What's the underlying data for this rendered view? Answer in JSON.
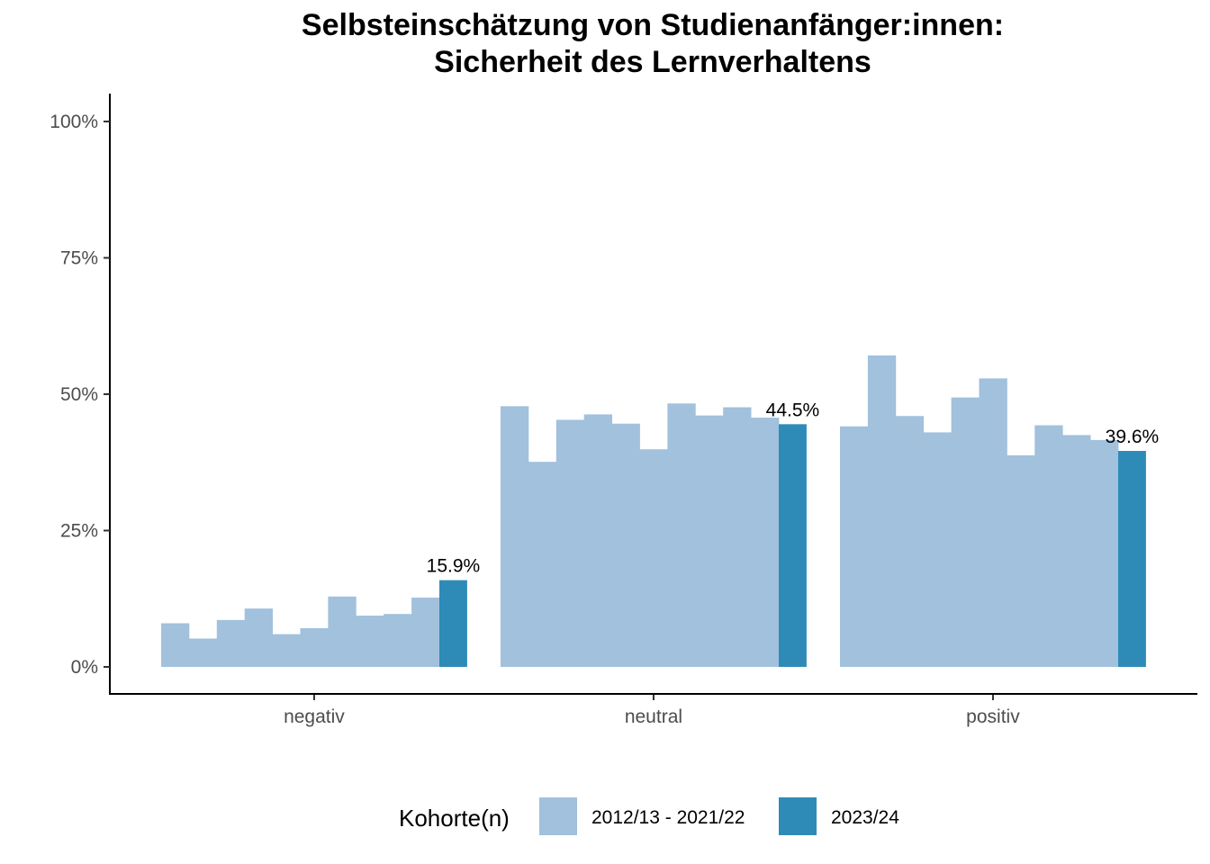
{
  "chart_data": {
    "type": "bar",
    "title_line1": "Selbsteinschätzung von Studienanfänger:innen:",
    "title_line2": "Sicherheit des Lernverhaltens",
    "categories": [
      "negativ",
      "neutral",
      "positiv"
    ],
    "y_ticks": [
      "0%",
      "25%",
      "50%",
      "75%",
      "100%"
    ],
    "ylim": [
      0,
      100
    ],
    "grid": false,
    "legend_position": "bottom",
    "legend_title": "Kohorte(n)",
    "series": [
      {
        "name": "2012/13 - 2021/22",
        "color": "#a1c1dd",
        "values": [
          [
            8.0,
            5.2,
            8.6,
            10.7,
            6.0,
            7.1,
            12.9,
            9.4,
            9.7,
            12.7
          ],
          [
            47.8,
            37.6,
            45.3,
            46.3,
            44.6,
            39.9,
            48.3,
            46.1,
            47.6,
            45.7
          ],
          [
            44.1,
            57.1,
            46.0,
            43.0,
            49.4,
            52.9,
            38.8,
            44.3,
            42.5,
            41.6
          ]
        ]
      },
      {
        "name": "2023/24",
        "color": "#2e8bb7",
        "values": [
          15.9,
          44.5,
          39.6
        ],
        "labels": [
          "15.9%",
          "44.5%",
          "39.6%"
        ]
      }
    ]
  }
}
